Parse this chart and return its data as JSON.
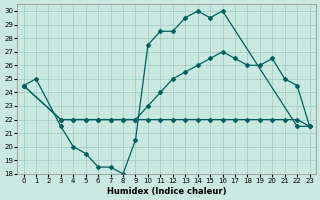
{
  "xlabel": "Humidex (Indice chaleur)",
  "xlim": [
    -0.5,
    23.5
  ],
  "ylim": [
    18,
    30.5
  ],
  "yticks": [
    18,
    19,
    20,
    21,
    22,
    23,
    24,
    25,
    26,
    27,
    28,
    29,
    30
  ],
  "xticks": [
    0,
    1,
    2,
    3,
    4,
    5,
    6,
    7,
    8,
    9,
    10,
    11,
    12,
    13,
    14,
    15,
    16,
    17,
    18,
    19,
    20,
    21,
    22,
    23
  ],
  "bg_color": "#c8e8e0",
  "grid_color": "#a0c8c0",
  "line_color": "#006060",
  "line1": {
    "x": [
      0,
      1,
      3,
      4,
      5,
      6,
      7,
      8,
      9,
      10,
      11,
      12,
      13,
      14,
      15,
      16,
      22,
      23
    ],
    "y": [
      24.5,
      25,
      21.5,
      20,
      19.5,
      18.5,
      18.5,
      18,
      20.5,
      27.5,
      28.5,
      28.5,
      29.5,
      30,
      29.5,
      30,
      21.5,
      21.5
    ]
  },
  "line2": {
    "x": [
      0,
      3,
      4,
      5,
      6,
      7,
      8,
      9,
      10,
      11,
      12,
      13,
      14,
      15,
      16,
      17,
      18,
      19,
      20,
      21,
      22,
      23
    ],
    "y": [
      24.5,
      22,
      22,
      22,
      22,
      22,
      22,
      22,
      22,
      22,
      22,
      22,
      22,
      22,
      22,
      22,
      22,
      22,
      22,
      22,
      22,
      21.5
    ]
  },
  "line3": {
    "x": [
      0,
      3,
      4,
      5,
      6,
      7,
      8,
      9,
      10,
      11,
      12,
      13,
      14,
      15,
      16,
      17,
      18,
      19,
      20,
      21,
      22,
      23
    ],
    "y": [
      24.5,
      22,
      22,
      22,
      22,
      22,
      22,
      22,
      23,
      24,
      25,
      25.5,
      26,
      26.5,
      27,
      26.5,
      26,
      26,
      26.5,
      25,
      24.5,
      21.5
    ]
  }
}
